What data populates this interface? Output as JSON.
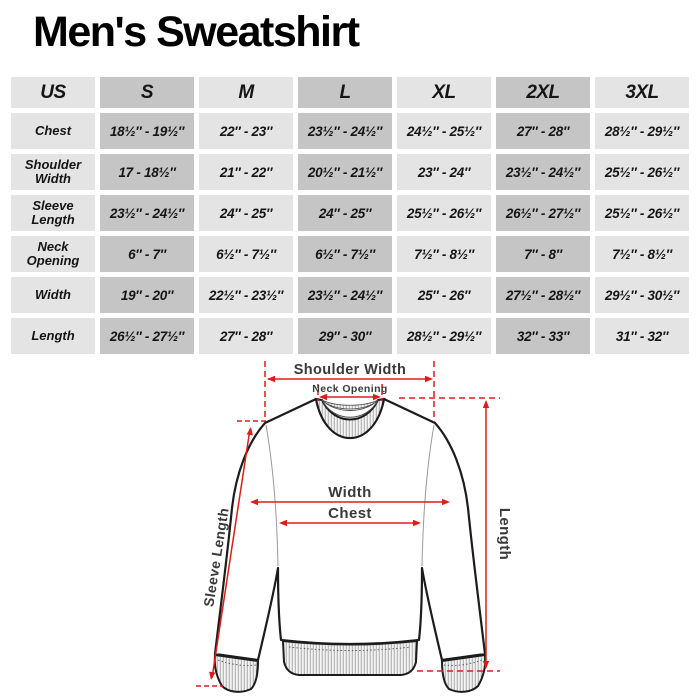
{
  "title": "Men's Sweatshirt",
  "size_table": {
    "columns": [
      "US",
      "S",
      "M",
      "L",
      "XL",
      "2XL",
      "3XL"
    ],
    "rows": [
      {
        "label": "Chest",
        "values": [
          "18½″ - 19½″",
          "22″ - 23″",
          "23½″ - 24½″",
          "24½″ - 25½″",
          "27″ - 28″",
          "28½″ - 29½″"
        ]
      },
      {
        "label": "Shoulder Width",
        "values": [
          "17 - 18½″",
          "21″ - 22″",
          "20½″ - 21½″",
          "23″ - 24″",
          "23½″ - 24½″",
          "25½″ - 26½″"
        ]
      },
      {
        "label": "Sleeve Length",
        "values": [
          "23½″ - 24½″",
          "24″ - 25″",
          "24″ - 25″",
          "25½″ - 26½″",
          "26½″ - 27½″",
          "25½″ - 26½″"
        ]
      },
      {
        "label": "Neck Opening",
        "values": [
          "6″ - 7″",
          "6½″ - 7½″",
          "6½″ - 7½″",
          "7½″ - 8½″",
          "7″ - 8″",
          "7½″ - 8½″"
        ]
      },
      {
        "label": "Width",
        "values": [
          "19″ - 20″",
          "22½″ - 23½″",
          "23½″ - 24½″",
          "25″ - 26″",
          "27½″ - 28½″",
          "29½″ - 30½″"
        ]
      },
      {
        "label": "Length",
        "values": [
          "26½″ - 27½″",
          "27″ - 28″",
          "29″ - 30″",
          "28½″ - 29½″",
          "32″ - 33″",
          "31″ - 32″"
        ]
      }
    ]
  },
  "diagram": {
    "labels": {
      "shoulder_width": "Shoulder Width",
      "neck_opening": "Neck Opening",
      "width": "Width",
      "chest": "Chest",
      "length": "Length",
      "sleeve_length": "Sleeve Length"
    }
  },
  "colors": {
    "accent_red": "#dd1c1c",
    "cell_light": "#e4e4e4",
    "cell_dark": "#c5c5c5",
    "outline_black": "#1c1c1c",
    "label_gray": "#3a3a3a"
  }
}
